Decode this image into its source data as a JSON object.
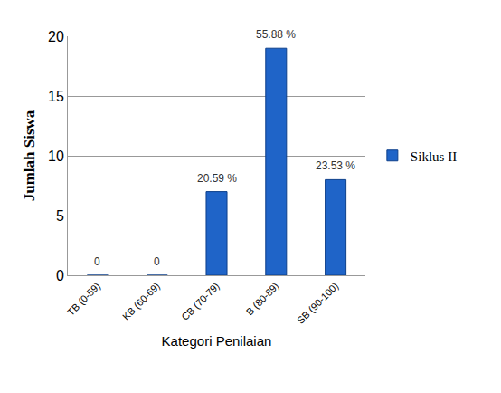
{
  "chart_data": {
    "type": "bar",
    "x_label": "Kategori Penilaian",
    "y_label": "Jumlah Siswa",
    "categories": [
      "TB (0-59)",
      "KB (60-69)",
      "CB (70-79)",
      "B (80-89)",
      "SB (90-100)"
    ],
    "series": [
      {
        "name": "Siklus II",
        "color": "#1f64c8",
        "values": [
          0,
          0,
          7,
          19,
          8
        ]
      }
    ],
    "annotations": [
      "0",
      "0",
      "20.59 %",
      "55.88 %",
      "23.53 %"
    ],
    "ylim": [
      0,
      20
    ],
    "yticks": [
      0,
      5,
      10,
      15,
      20
    ],
    "grid": true,
    "legend": "right"
  }
}
